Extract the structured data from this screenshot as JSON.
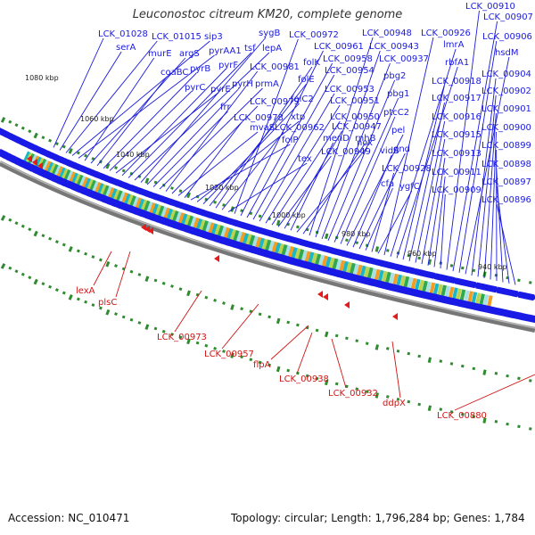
{
  "title": "Leuconostoc citreum KM20, complete genome",
  "footer": {
    "accession": "Accession: NC_010471",
    "topology": "Topology: circular; Length: 1,796,284 bp; Genes: 1,784"
  },
  "kbp_ticks": [
    "1080 kbp",
    "1060 kbp",
    "1040 kbp",
    "1020 kbp",
    "1000 kbp",
    "980 kbp",
    "960 kbp",
    "940 kbp"
  ],
  "top_gene_labels": [
    "LCK_01028",
    "serA",
    "LCK_01015",
    "sip3",
    "pyrAA1",
    "murE",
    "argS",
    "coaBC",
    "pyrB",
    "pyrC",
    "pyrE",
    "pyrF",
    "tsf",
    "lepA",
    "sygB",
    "pyrH",
    "frr",
    "prmA",
    "LCK_00981",
    "LCK_00979",
    "mvaS",
    "LCK_00978",
    "folP",
    "xtp",
    "folC2",
    "folE",
    "folK",
    "LCK_00962",
    "tex",
    "LCK_00972",
    "LCK_00961",
    "LCK_00958",
    "LCK_00954",
    "LCK_00953",
    "LCK_00951",
    "LCK_00950",
    "LCK_00949",
    "LCK_00947",
    "menD",
    "nox",
    "rnhB",
    "LCK_00948",
    "LCK_00943",
    "LCK_00937",
    "pbg2",
    "pbg1",
    "ptcC2",
    "pel",
    "vidB",
    "gnd",
    "cfa",
    "LCK_00928",
    "ygfC",
    "LCK_00926",
    "lmrA",
    "rbfA1",
    "LCK_00918",
    "LCK_00917",
    "LCK_00916",
    "LCK_00915",
    "LCK_00913",
    "LCK_00911",
    "LCK_00909",
    "LCK_00910",
    "LCK_00907",
    "LCK_00906",
    "hsdM",
    "LCK_00904",
    "LCK_00902",
    "LCK_00901",
    "LCK_00900",
    "LCK_00899",
    "LCK_00898",
    "LCK_00897",
    "LCK_00896"
  ],
  "bottom_gene_labels": [
    "lexA",
    "plsC",
    "LCK_00973",
    "LCK_00957",
    "flpA",
    "LCK_00938",
    "LCK_00932",
    "ddpX",
    "LCK_00880"
  ],
  "colors": {
    "forward_genes": "#1a1ae6",
    "reverse_genes": "#e61a1a",
    "backbone": "#7a7a7a",
    "dots": "#2e8b2e",
    "top_labels": "#1a1ae0",
    "bottom_labels": "#d01414"
  }
}
